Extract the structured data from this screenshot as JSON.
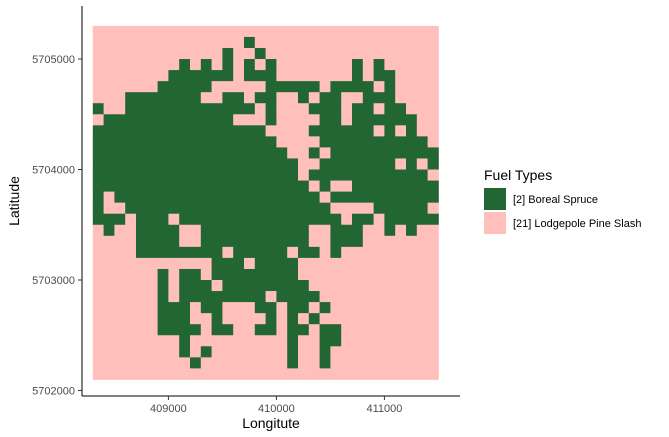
{
  "chart_data": {
    "type": "heatmap",
    "xlabel": "Longitute",
    "ylabel": "Latitude",
    "xlim": [
      408200,
      411700
    ],
    "ylim": [
      5701950,
      5705480
    ],
    "x_ticks": [
      409000,
      410000,
      411000
    ],
    "x_tick_labels": [
      "409000",
      "410000",
      "411000"
    ],
    "y_ticks": [
      5702000,
      5703000,
      5704000,
      5705000
    ],
    "y_tick_labels": [
      "5702000",
      "5703000",
      "5704000",
      "5705000"
    ],
    "grid": false,
    "legend_position": "right",
    "legend": {
      "title": "Fuel Types",
      "entries": [
        {
          "label": "[2] Boreal Spruce",
          "color": "#226633"
        },
        {
          "label": "[21] Lodgepole Pine Slash",
          "color": "#ffc0bc"
        }
      ]
    },
    "raster": {
      "x_min": 408300,
      "y_top": 5705300,
      "cell_size": 100,
      "columns": 32,
      "rows": 32,
      "legend": {
        "s": "[2] Boreal Spruce",
        ".": "[21] Lodgepole Pine Slash"
      },
      "grid": [
        "................................",
        "..............s.................",
        "............s..s................",
        "........s.s.s.s.s.......s.s.....",
        ".......ssssss.sss.......s.ss....",
        "......sssss.....sssss.ssss.s....",
        "...sssssss..ss.ss..s.ss..sss....",
        "s..ssssssssssss.s...sss.ss.ss...",
        ".ssssssssssss...s....ss.ssssss..",
        "ssssssssssssssss....ssssss.s.s..",
        "sssssssssssssssss....ssssssssss.",
        "ssssssssssssssssss..s.ssssssssss",
        "sssssssssssssssssss..sssssss.s.s",
        "sssssssssssssssssss.sssssssssss.",
        "ssssssssssssssssssss.s..ssssssss",
        "s.sssssssssssssssssss.ssssssssss",
        "s..sssssssssssssssssss....sssss.",
        "sss.sss.sssssssssssssss.ss.sssss",
        ".s..ssss..ssssssssss..sss..s.s..",
        "....ssss..ssssssssss..sss.......",
        "....ssssssss.sssss.ss.s.........",
        "...........sss.ssss.............",
        "......s.ss.ssssssss.............",
        "......s.sss.ssssssss............",
        "......s.ssssssss.ssss...........",
        "......sss.ss...ss.ss.s..........",
        "......sss..s....s.s.s...........",
        "......ssss.ss..ss.ss.ss.........",
        "........s.........s..ss.........",
        "........s.s.......s..s..........",
        ".........s........s..s..........",
        "................................"
      ]
    }
  }
}
